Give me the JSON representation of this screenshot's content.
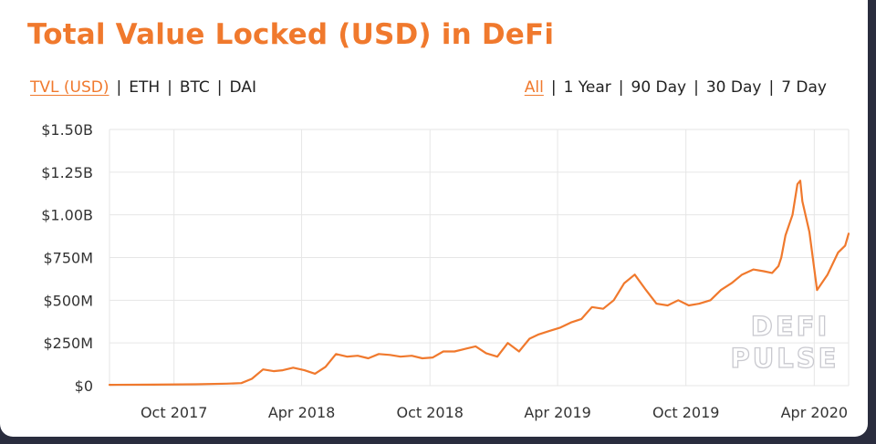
{
  "title": "Total Value Locked (USD) in DeFi",
  "metric_tabs": [
    "TVL (USD)",
    "ETH",
    "BTC",
    "DAI"
  ],
  "active_metric": "TVL (USD)",
  "range_tabs": [
    "All",
    "1 Year",
    "90 Day",
    "30 Day",
    "7 Day"
  ],
  "active_range": "All",
  "colors": {
    "accent": "#f0792d",
    "grid": "#e6e6e6",
    "text": "#222222"
  },
  "logo_text": [
    "DEFI",
    "PULSE"
  ],
  "chart_data": {
    "type": "line",
    "title": "Total Value Locked (USD) in DeFi",
    "xlabel": "",
    "ylabel": "",
    "grid": true,
    "legend": "none",
    "ylim": [
      0,
      1500
    ],
    "y_unit": "millions USD",
    "y_ticks": [
      0,
      250,
      500,
      750,
      1000,
      1250,
      1500
    ],
    "y_tick_labels": [
      "$0",
      "$250M",
      "$500M",
      "$750M",
      "$1.00B",
      "$1.25B",
      "$1.50B"
    ],
    "xlim": [
      "2017-07-01",
      "2020-05-20"
    ],
    "x_ticks": [
      "2017-10-01",
      "2018-04-01",
      "2018-10-01",
      "2019-04-01",
      "2019-10-01",
      "2020-04-01"
    ],
    "x_tick_labels": [
      "Oct 2017",
      "Apr 2018",
      "Oct 2018",
      "Apr 2019",
      "Oct 2019",
      "Apr 2020"
    ],
    "series": [
      {
        "color": "#f0792d",
        "x": [
          "2017-07-01",
          "2017-09-01",
          "2017-11-01",
          "2017-12-15",
          "2018-01-05",
          "2018-01-20",
          "2018-02-05",
          "2018-02-20",
          "2018-03-05",
          "2018-03-20",
          "2018-04-05",
          "2018-04-20",
          "2018-05-05",
          "2018-05-20",
          "2018-06-05",
          "2018-06-20",
          "2018-07-05",
          "2018-07-20",
          "2018-08-05",
          "2018-08-20",
          "2018-09-05",
          "2018-09-20",
          "2018-10-05",
          "2018-10-20",
          "2018-11-05",
          "2018-11-20",
          "2018-12-05",
          "2018-12-20",
          "2019-01-05",
          "2019-01-20",
          "2019-02-05",
          "2019-02-20",
          "2019-03-05",
          "2019-03-20",
          "2019-04-05",
          "2019-04-20",
          "2019-05-05",
          "2019-05-20",
          "2019-06-05",
          "2019-06-20",
          "2019-07-05",
          "2019-07-20",
          "2019-08-05",
          "2019-08-20",
          "2019-09-05",
          "2019-09-20",
          "2019-10-05",
          "2019-10-20",
          "2019-11-05",
          "2019-11-20",
          "2019-12-05",
          "2019-12-20",
          "2020-01-05",
          "2020-01-20",
          "2020-02-01",
          "2020-02-10",
          "2020-02-14",
          "2020-02-20",
          "2020-03-01",
          "2020-03-08",
          "2020-03-12",
          "2020-03-15",
          "2020-03-25",
          "2020-04-05",
          "2020-04-20",
          "2020-05-05",
          "2020-05-15",
          "2020-05-20"
        ],
        "values": [
          5,
          6,
          8,
          12,
          15,
          40,
          95,
          85,
          90,
          105,
          90,
          70,
          110,
          185,
          170,
          175,
          160,
          185,
          180,
          170,
          175,
          160,
          165,
          200,
          200,
          215,
          230,
          190,
          170,
          250,
          200,
          275,
          300,
          320,
          340,
          370,
          390,
          460,
          450,
          500,
          600,
          650,
          560,
          480,
          470,
          500,
          470,
          480,
          500,
          560,
          600,
          650,
          680,
          670,
          660,
          700,
          750,
          880,
          1000,
          1180,
          1200,
          1080,
          900,
          560,
          650,
          780,
          820,
          890
        ]
      }
    ]
  }
}
